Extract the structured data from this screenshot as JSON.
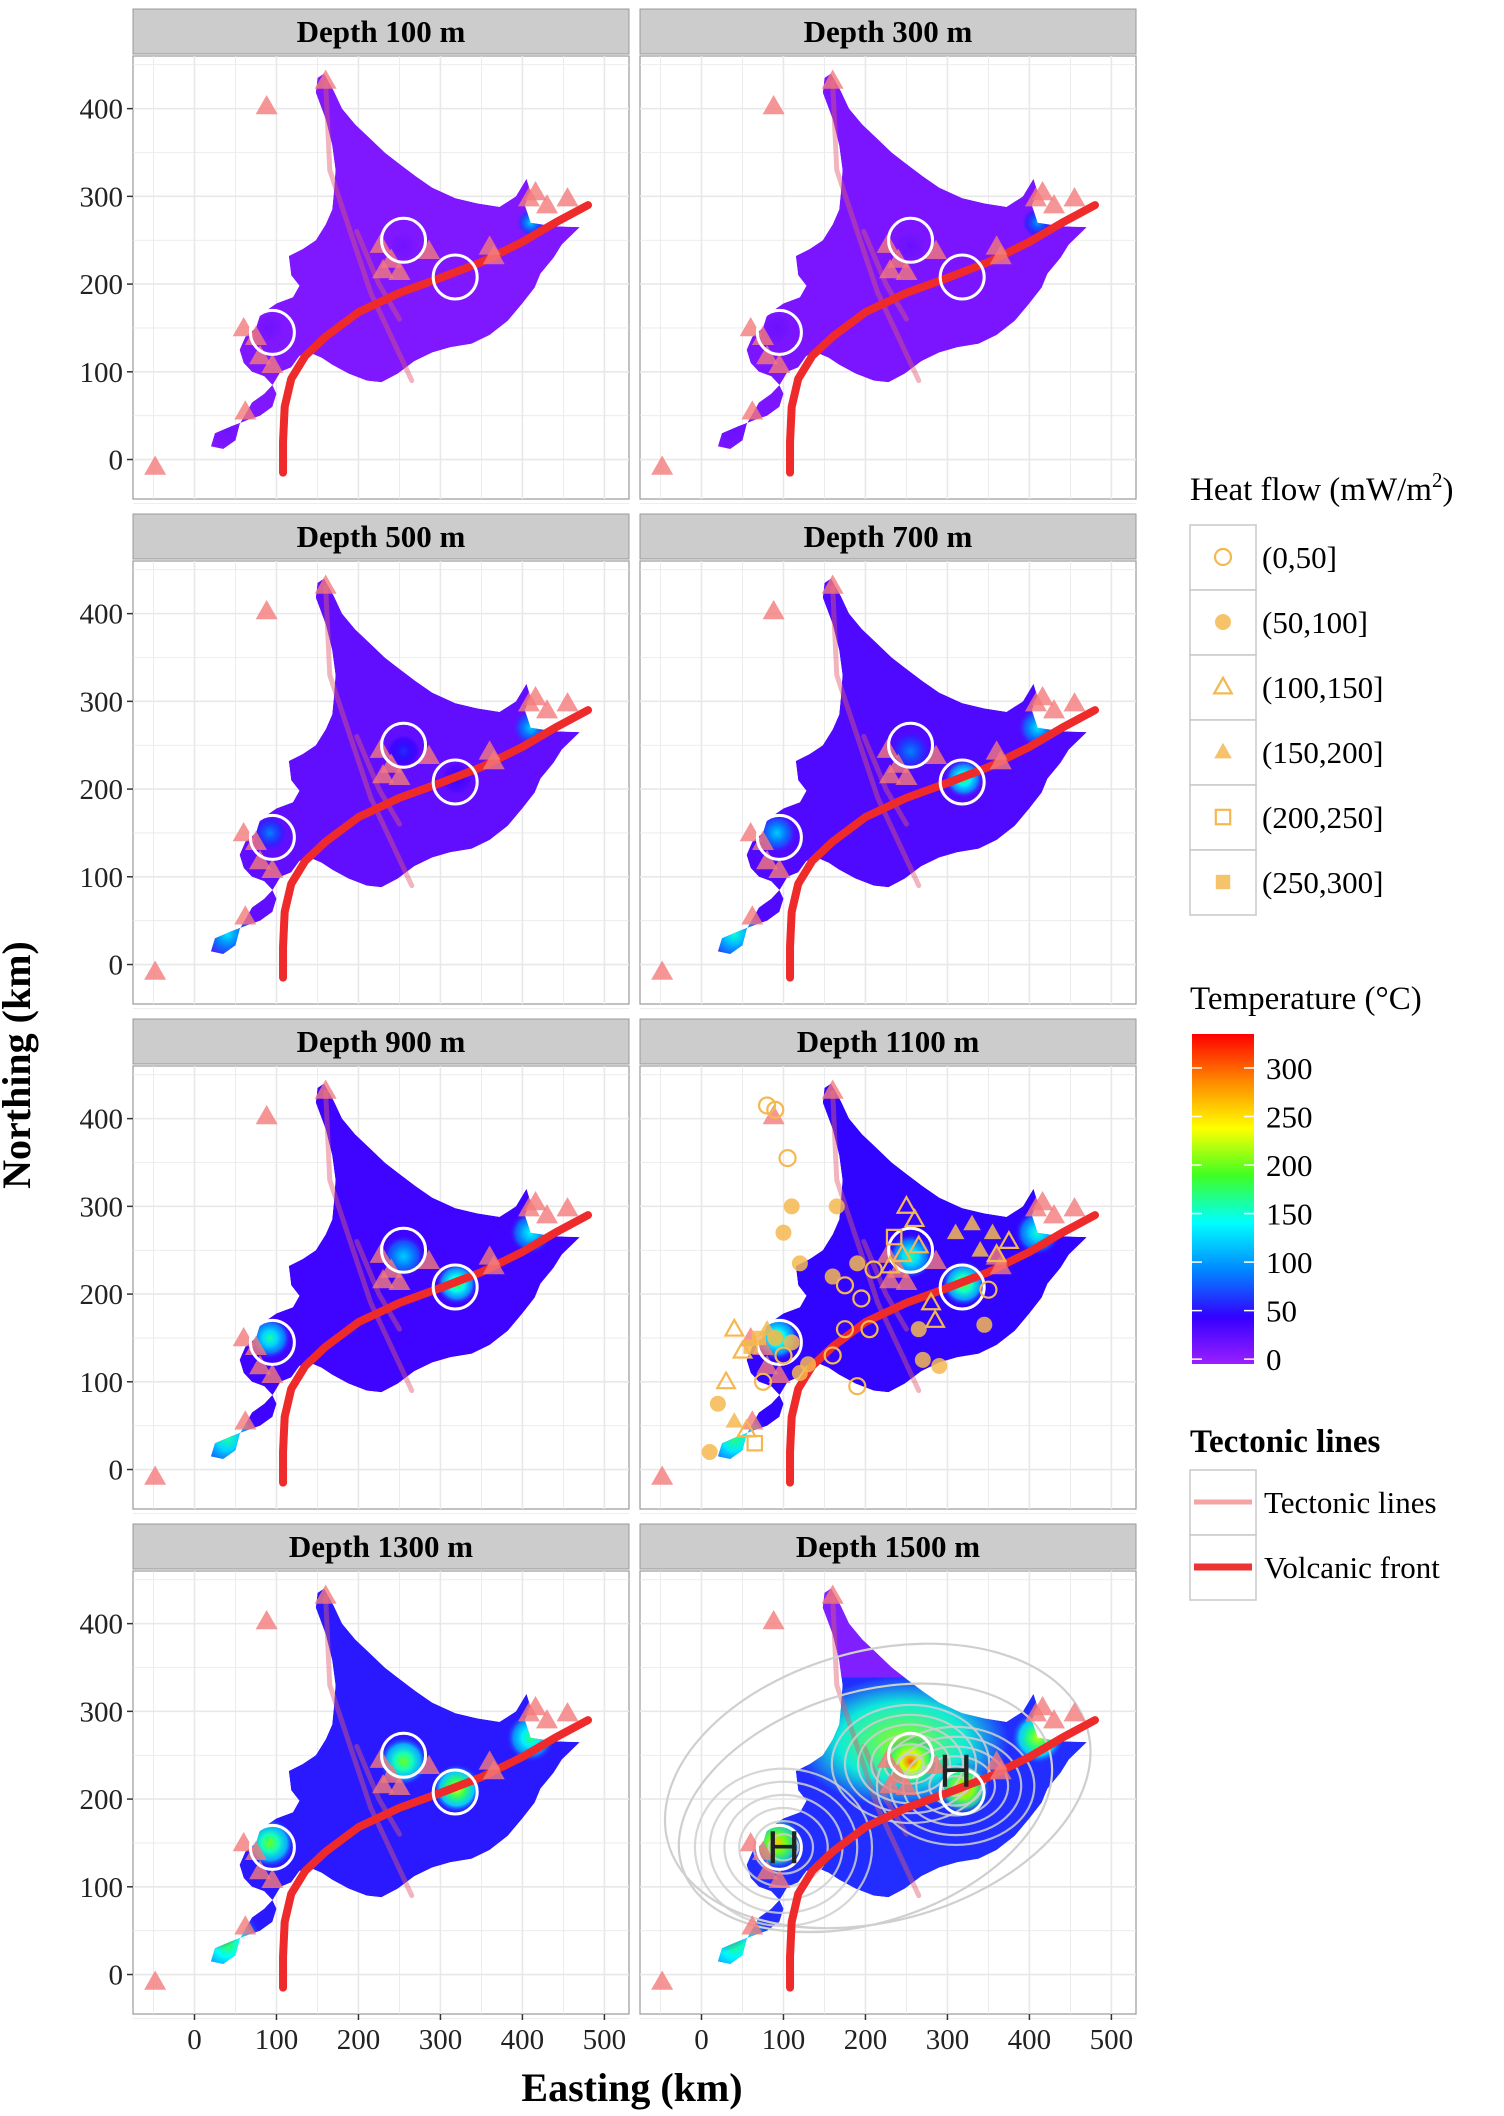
{
  "chart_data": {
    "type": "heatmap",
    "description_type": "faceted map of interpolated subsurface temperature (Hokkaido)",
    "xlabel": "Easting (km)",
    "ylabel": "Northing (km)",
    "xlim": [
      -75,
      530
    ],
    "ylim": [
      -45,
      460
    ],
    "x_ticks": [
      0,
      100,
      200,
      300,
      400,
      500
    ],
    "y_ticks": [
      0,
      100,
      200,
      300,
      400
    ],
    "grid": true,
    "facets": [
      {
        "label": "Depth 100 m",
        "depth_m": 100
      },
      {
        "label": "Depth 300 m",
        "depth_m": 300
      },
      {
        "label": "Depth 500 m",
        "depth_m": 500
      },
      {
        "label": "Depth 700 m",
        "depth_m": 700
      },
      {
        "label": "Depth 900 m",
        "depth_m": 900
      },
      {
        "label": "Depth 1100 m",
        "depth_m": 1100
      },
      {
        "label": "Depth 1300 m",
        "depth_m": 1300
      },
      {
        "label": "Depth 1500 m",
        "depth_m": 1500
      }
    ],
    "island_outline": [
      [
        20,
        15
      ],
      [
        25,
        30
      ],
      [
        45,
        38
      ],
      [
        65,
        45
      ],
      [
        80,
        50
      ],
      [
        95,
        60
      ],
      [
        100,
        75
      ],
      [
        95,
        85
      ],
      [
        85,
        95
      ],
      [
        70,
        100
      ],
      [
        60,
        110
      ],
      [
        55,
        125
      ],
      [
        62,
        140
      ],
      [
        75,
        150
      ],
      [
        80,
        165
      ],
      [
        100,
        178
      ],
      [
        120,
        185
      ],
      [
        128,
        198
      ],
      [
        118,
        210
      ],
      [
        115,
        232
      ],
      [
        132,
        240
      ],
      [
        148,
        250
      ],
      [
        160,
        268
      ],
      [
        168,
        285
      ],
      [
        170,
        305
      ],
      [
        172,
        330
      ],
      [
        168,
        358
      ],
      [
        160,
        388
      ],
      [
        148,
        418
      ],
      [
        150,
        435
      ],
      [
        158,
        440
      ],
      [
        170,
        420
      ],
      [
        180,
        400
      ],
      [
        196,
        382
      ],
      [
        212,
        368
      ],
      [
        232,
        350
      ],
      [
        250,
        337
      ],
      [
        270,
        323
      ],
      [
        290,
        310
      ],
      [
        318,
        298
      ],
      [
        345,
        292
      ],
      [
        372,
        288
      ],
      [
        392,
        300
      ],
      [
        405,
        320
      ],
      [
        410,
        305
      ],
      [
        403,
        290
      ],
      [
        410,
        270
      ],
      [
        438,
        266
      ],
      [
        470,
        265
      ],
      [
        448,
        245
      ],
      [
        438,
        230
      ],
      [
        422,
        212
      ],
      [
        415,
        196
      ],
      [
        400,
        178
      ],
      [
        382,
        158
      ],
      [
        360,
        142
      ],
      [
        338,
        132
      ],
      [
        312,
        128
      ],
      [
        290,
        122
      ],
      [
        268,
        112
      ],
      [
        248,
        98
      ],
      [
        228,
        88
      ],
      [
        210,
        90
      ],
      [
        188,
        98
      ],
      [
        168,
        108
      ],
      [
        155,
        116
      ],
      [
        140,
        122
      ],
      [
        128,
        118
      ],
      [
        118,
        105
      ],
      [
        105,
        100
      ],
      [
        96,
        86
      ],
      [
        85,
        75
      ],
      [
        70,
        65
      ],
      [
        55,
        40
      ],
      [
        50,
        22
      ],
      [
        35,
        12
      ],
      [
        20,
        15
      ]
    ],
    "volcanic_front": [
      [
        108,
        -15
      ],
      [
        108,
        20
      ],
      [
        110,
        60
      ],
      [
        118,
        92
      ],
      [
        135,
        118
      ],
      [
        160,
        140
      ],
      [
        200,
        168
      ],
      [
        250,
        190
      ],
      [
        300,
        207
      ],
      [
        350,
        225
      ],
      [
        400,
        248
      ],
      [
        440,
        270
      ],
      [
        480,
        290
      ]
    ],
    "tectonic_lines": [
      [
        [
          160,
          430
        ],
        [
          165,
          330
        ],
        [
          190,
          260
        ],
        [
          215,
          190
        ],
        [
          245,
          130
        ],
        [
          265,
          90
        ]
      ],
      [
        [
          198,
          260
        ],
        [
          225,
          200
        ],
        [
          250,
          160
        ]
      ]
    ],
    "white_circles_km": [
      [
        95,
        145
      ],
      [
        255,
        250
      ],
      [
        318,
        208
      ]
    ],
    "volcanoes_km": [
      [
        -48,
        -8
      ],
      [
        88,
        403
      ],
      [
        160,
        432
      ],
      [
        62,
        55
      ],
      [
        60,
        150
      ],
      [
        75,
        140
      ],
      [
        80,
        118
      ],
      [
        95,
        108
      ],
      [
        227,
        245
      ],
      [
        240,
        228
      ],
      [
        230,
        216
      ],
      [
        250,
        214
      ],
      [
        286,
        238
      ],
      [
        360,
        243
      ],
      [
        365,
        232
      ],
      [
        408,
        298
      ],
      [
        416,
        305
      ],
      [
        430,
        290
      ],
      [
        455,
        298
      ]
    ],
    "hot_spots": [
      {
        "x": 92,
        "y": 150,
        "peak_C_by_depth": [
          15,
          18,
          90,
          120,
          160,
          180,
          200,
          260
        ]
      },
      {
        "x": 255,
        "y": 243,
        "peak_C_by_depth": [
          15,
          18,
          60,
          90,
          120,
          160,
          200,
          300
        ]
      },
      {
        "x": 320,
        "y": 212,
        "peak_C_by_depth": [
          10,
          12,
          40,
          180,
          190,
          200,
          230,
          270
        ]
      },
      {
        "x": 410,
        "y": 270,
        "peak_C_by_depth": [
          120,
          100,
          120,
          130,
          140,
          150,
          170,
          220
        ]
      },
      {
        "x": 40,
        "y": 35,
        "peak_C_by_depth": [
          15,
          18,
          130,
          150,
          160,
          170,
          180,
          170
        ]
      },
      {
        "x": 22,
        "y": 70,
        "peak_C_by_depth": [
          15,
          18,
          70,
          100,
          130,
          140,
          150,
          160
        ]
      }
    ],
    "heat_flow_points_1100m": [
      {
        "x": 80,
        "y": 415,
        "class": "(0,50]"
      },
      {
        "x": 90,
        "y": 410,
        "class": "(0,50]"
      },
      {
        "x": 105,
        "y": 355,
        "class": "(0,50]"
      },
      {
        "x": 165,
        "y": 300,
        "class": "(50,100]"
      },
      {
        "x": 110,
        "y": 300,
        "class": "(50,100]"
      },
      {
        "x": 100,
        "y": 270,
        "class": "(50,100]"
      },
      {
        "x": 120,
        "y": 235,
        "class": "(50,100]"
      },
      {
        "x": 160,
        "y": 220,
        "class": "(50,100]"
      },
      {
        "x": 190,
        "y": 235,
        "class": "(50,100]"
      },
      {
        "x": 210,
        "y": 228,
        "class": "(0,50]"
      },
      {
        "x": 175,
        "y": 210,
        "class": "(0,50]"
      },
      {
        "x": 195,
        "y": 195,
        "class": "(0,50]"
      },
      {
        "x": 205,
        "y": 160,
        "class": "(0,50]"
      },
      {
        "x": 175,
        "y": 160,
        "class": "(0,50]"
      },
      {
        "x": 160,
        "y": 130,
        "class": "(0,50]"
      },
      {
        "x": 130,
        "y": 120,
        "class": "(50,100]"
      },
      {
        "x": 190,
        "y": 95,
        "class": "(0,50]"
      },
      {
        "x": 265,
        "y": 160,
        "class": "(50,100]"
      },
      {
        "x": 270,
        "y": 125,
        "class": "(50,100]"
      },
      {
        "x": 290,
        "y": 118,
        "class": "(50,100]"
      },
      {
        "x": 250,
        "y": 300,
        "class": "(100,150]"
      },
      {
        "x": 260,
        "y": 285,
        "class": "(100,150]"
      },
      {
        "x": 265,
        "y": 255,
        "class": "(100,150]"
      },
      {
        "x": 245,
        "y": 245,
        "class": "(100,150]"
      },
      {
        "x": 230,
        "y": 232,
        "class": "(100,150]"
      },
      {
        "x": 280,
        "y": 190,
        "class": "(100,150]"
      },
      {
        "x": 285,
        "y": 170,
        "class": "(100,150]"
      },
      {
        "x": 310,
        "y": 270,
        "class": "(150,200]"
      },
      {
        "x": 330,
        "y": 280,
        "class": "(150,200]"
      },
      {
        "x": 355,
        "y": 270,
        "class": "(150,200]"
      },
      {
        "x": 340,
        "y": 250,
        "class": "(150,200]"
      },
      {
        "x": 360,
        "y": 245,
        "class": "(100,150]"
      },
      {
        "x": 375,
        "y": 260,
        "class": "(100,150]"
      },
      {
        "x": 345,
        "y": 165,
        "class": "(50,100]"
      },
      {
        "x": 350,
        "y": 205,
        "class": "(0,50]"
      },
      {
        "x": 235,
        "y": 265,
        "class": "(200,250]"
      },
      {
        "x": 60,
        "y": 140,
        "class": "(250,300]"
      },
      {
        "x": 70,
        "y": 150,
        "class": "(250,300]"
      },
      {
        "x": 40,
        "y": 160,
        "class": "(100,150]"
      },
      {
        "x": 50,
        "y": 135,
        "class": "(100,150]"
      },
      {
        "x": 80,
        "y": 160,
        "class": "(150,200]"
      },
      {
        "x": 90,
        "y": 150,
        "class": "(50,100]"
      },
      {
        "x": 100,
        "y": 130,
        "class": "(0,50]"
      },
      {
        "x": 110,
        "y": 145,
        "class": "(50,100]"
      },
      {
        "x": 120,
        "y": 110,
        "class": "(50,100]"
      },
      {
        "x": 30,
        "y": 100,
        "class": "(100,150]"
      },
      {
        "x": 20,
        "y": 75,
        "class": "(50,100]"
      },
      {
        "x": 40,
        "y": 55,
        "class": "(150,200]"
      },
      {
        "x": 55,
        "y": 45,
        "class": "(100,150]"
      },
      {
        "x": 65,
        "y": 30,
        "class": "(200,250]"
      },
      {
        "x": 10,
        "y": 20,
        "class": "(50,100]"
      },
      {
        "x": 75,
        "y": 100,
        "class": "(0,50]"
      }
    ],
    "density_peaks_1500m": [
      {
        "label": "H",
        "x": 100,
        "y": 145
      },
      {
        "label": "H",
        "x": 310,
        "y": 232
      }
    ]
  },
  "legend": {
    "heat_flow": {
      "title": "Heat flow (mW/m",
      "title_sup": "2",
      "title_close": ")",
      "items": [
        "(0,50]",
        "(50,100]",
        "(100,150]",
        "(150,200]",
        "(200,250]",
        "(250,300]"
      ],
      "color": "#f5b850"
    },
    "temperature": {
      "title": "Temperature (°C)",
      "ticks": [
        "0",
        "50",
        "100",
        "150",
        "200",
        "250",
        "300"
      ],
      "range": [
        -5,
        335
      ],
      "colors": [
        "#9b1fff",
        "#3300ff",
        "#0088ff",
        "#00ffff",
        "#3eff22",
        "#ffff00",
        "#ff8800",
        "#ff0000"
      ]
    },
    "tectonic": {
      "title": "Tectonic lines",
      "items": [
        {
          "label": "Tectonic lines",
          "color": "#f5a3a3"
        },
        {
          "label": "Volcanic front",
          "color": "#ee3333"
        }
      ]
    }
  },
  "colors": {
    "panel_bg": "#ffffff",
    "grid": "#e8e8e8",
    "strip_bg": "#cccccc",
    "volcano": "#f47a7a",
    "volcanic_front": "#ee2a2a",
    "tectonic": "#dd5a70",
    "circle": "#ffffff"
  }
}
